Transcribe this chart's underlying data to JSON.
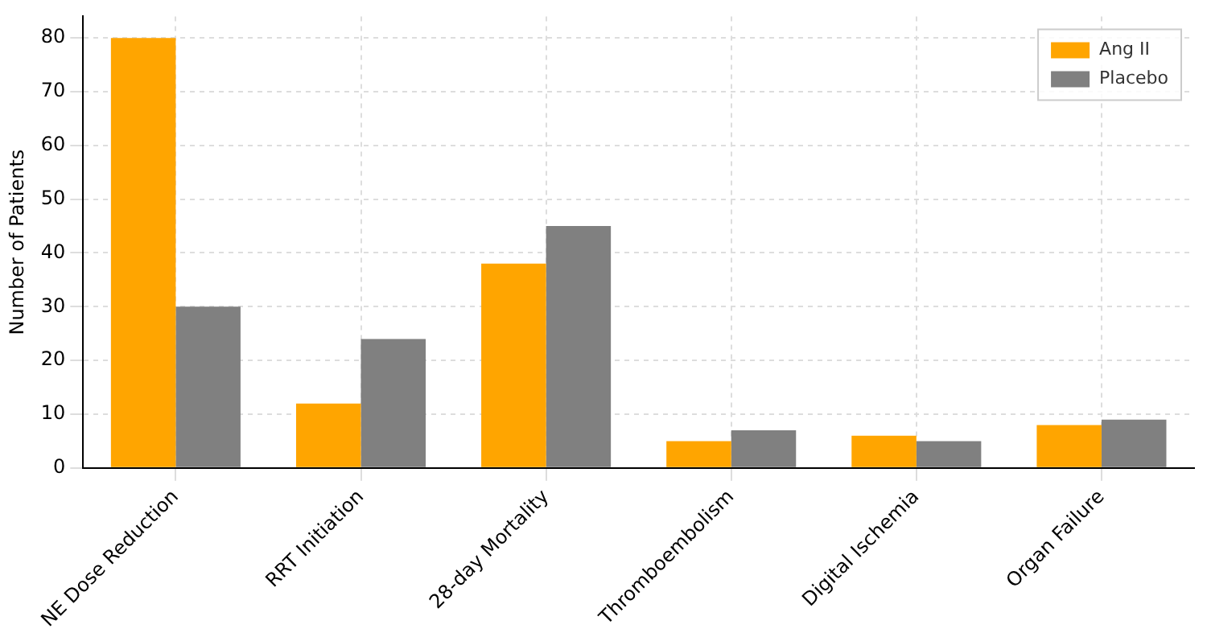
{
  "chart_data": {
    "type": "bar",
    "ylabel": "Number of Patients",
    "categories": [
      "NE Dose Reduction",
      "RRT Initiation",
      "28-day Mortality",
      "Thromboembolism",
      "Digital Ischemia",
      "Organ Failure"
    ],
    "series": [
      {
        "name": "Ang II",
        "color": "#ffa500",
        "values": [
          80,
          12,
          38,
          5,
          6,
          8
        ]
      },
      {
        "name": "Placebo",
        "color": "#808080",
        "values": [
          30,
          24,
          45,
          7,
          5,
          9
        ]
      }
    ],
    "ylim": [
      0,
      84
    ],
    "yticks": [
      0,
      10,
      20,
      30,
      40,
      50,
      60,
      70,
      80
    ],
    "grid": true,
    "legend": "top right"
  }
}
